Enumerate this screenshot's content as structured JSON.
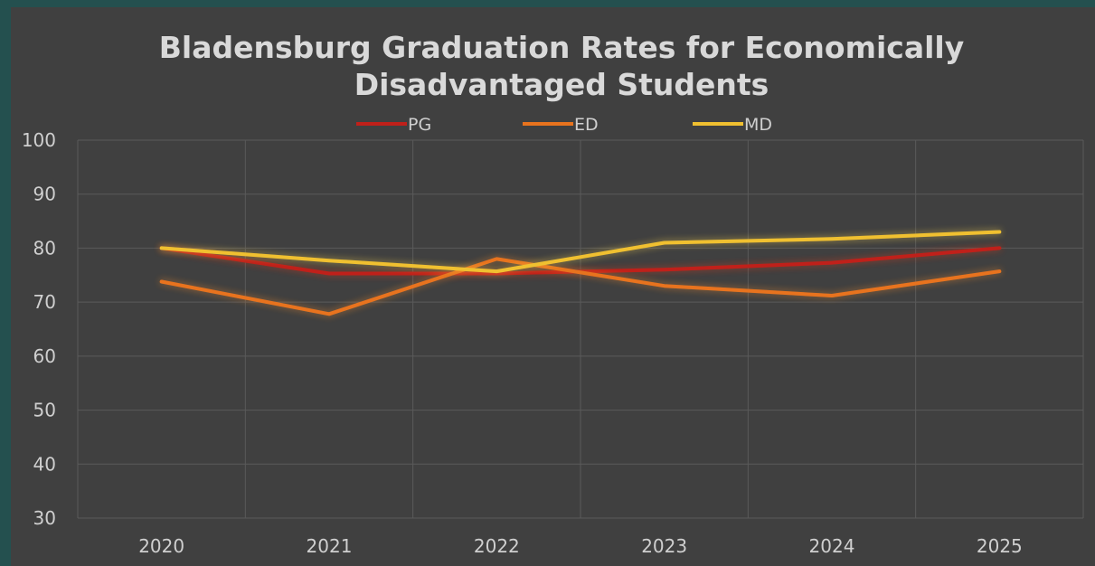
{
  "chart_data": {
    "type": "line",
    "title_lines": [
      "Bladensburg Graduation Rates for Economically",
      "Disadvantaged Students"
    ],
    "xlabel": "",
    "ylabel": "",
    "categories": [
      "2020",
      "2021",
      "2022",
      "2023",
      "2024",
      "2025"
    ],
    "ylim": [
      30,
      100
    ],
    "yticks": [
      100,
      90,
      80,
      70,
      60,
      50,
      40,
      30
    ],
    "grid": true,
    "legend_position": "top",
    "series": [
      {
        "name": "PG",
        "color": "#c0201a",
        "glow": "#e03a1a",
        "values": [
          80,
          75.3,
          75.3,
          76,
          77.3,
          80
        ]
      },
      {
        "name": "ED",
        "color": "#e8731e",
        "glow": "#f08a30",
        "values": [
          73.8,
          67.8,
          78,
          73,
          71.2,
          75.7
        ]
      },
      {
        "name": "MD",
        "color": "#f0c030",
        "glow": "#f5d050",
        "values": [
          80,
          77.7,
          75.7,
          81,
          81.7,
          83
        ]
      }
    ]
  }
}
